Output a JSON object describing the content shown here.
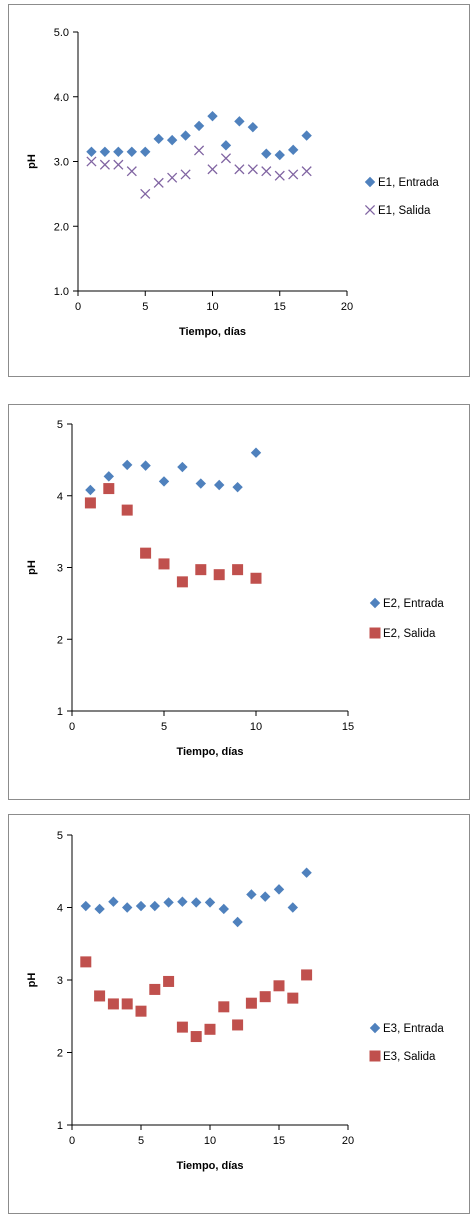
{
  "chart_data": [
    {
      "type": "scatter",
      "xlabel": "Tiempo, días",
      "ylabel": "pH",
      "xlim": [
        0,
        20
      ],
      "ylim": [
        1.0,
        5.0
      ],
      "xticks": [
        "0",
        "5",
        "10",
        "15",
        "20"
      ],
      "yticks": [
        "1.0",
        "2.0",
        "3.0",
        "4.0",
        "5.0"
      ],
      "legend_position": "right",
      "series": [
        {
          "name": "E1, Entrada",
          "marker": "diamond",
          "color": "#4f81bd",
          "x": [
            1,
            2,
            3,
            4,
            5,
            6,
            7,
            8,
            9,
            10,
            11,
            12,
            13,
            14,
            15,
            16,
            17
          ],
          "y": [
            3.15,
            3.15,
            3.15,
            3.15,
            3.15,
            3.35,
            3.33,
            3.4,
            3.55,
            3.7,
            3.25,
            3.62,
            3.53,
            3.12,
            3.1,
            3.18,
            3.4
          ]
        },
        {
          "name": "E1, Salida",
          "marker": "x",
          "color": "#8064a2",
          "x": [
            1,
            2,
            3,
            4,
            5,
            6,
            7,
            8,
            9,
            10,
            11,
            12,
            13,
            14,
            15,
            16,
            17
          ],
          "y": [
            3.0,
            2.95,
            2.95,
            2.85,
            2.5,
            2.67,
            2.75,
            2.8,
            3.17,
            2.88,
            3.05,
            2.88,
            2.88,
            2.85,
            2.78,
            2.8,
            2.85
          ]
        }
      ]
    },
    {
      "type": "scatter",
      "xlabel": "Tiempo, días",
      "ylabel": "pH",
      "xlim": [
        0,
        15
      ],
      "ylim": [
        1,
        5
      ],
      "xticks": [
        "0",
        "5",
        "10",
        "15"
      ],
      "yticks": [
        "1",
        "2",
        "3",
        "4",
        "5"
      ],
      "legend_position": "right",
      "series": [
        {
          "name": "E2, Entrada",
          "marker": "diamond",
          "color": "#4f81bd",
          "x": [
            1,
            2,
            3,
            4,
            5,
            6,
            7,
            8,
            9,
            10
          ],
          "y": [
            4.08,
            4.27,
            4.43,
            4.42,
            4.2,
            4.4,
            4.17,
            4.15,
            4.12,
            4.6
          ]
        },
        {
          "name": "E2, Salida",
          "marker": "square",
          "color": "#c0504d",
          "x": [
            1,
            2,
            3,
            4,
            5,
            6,
            7,
            8,
            9,
            10
          ],
          "y": [
            3.9,
            4.1,
            3.8,
            3.2,
            3.05,
            2.8,
            2.97,
            2.9,
            2.97,
            2.85
          ]
        }
      ]
    },
    {
      "type": "scatter",
      "xlabel": "Tiempo, días",
      "ylabel": "pH",
      "xlim": [
        0,
        20
      ],
      "ylim": [
        1,
        5
      ],
      "xticks": [
        "0",
        "5",
        "10",
        "15",
        "20"
      ],
      "yticks": [
        "1",
        "2",
        "3",
        "4",
        "5"
      ],
      "legend_position": "right",
      "series": [
        {
          "name": "E3, Entrada",
          "marker": "diamond",
          "color": "#4f81bd",
          "x": [
            1,
            2,
            3,
            4,
            5,
            6,
            7,
            8,
            9,
            10,
            11,
            12,
            13,
            14,
            15,
            16,
            17
          ],
          "y": [
            4.02,
            3.98,
            4.08,
            4.0,
            4.02,
            4.02,
            4.07,
            4.08,
            4.07,
            4.07,
            3.98,
            3.8,
            4.18,
            4.15,
            4.25,
            4.0,
            4.48
          ]
        },
        {
          "name": "E3, Salida",
          "marker": "square",
          "color": "#c0504d",
          "x": [
            1,
            2,
            3,
            4,
            5,
            6,
            7,
            8,
            9,
            10,
            11,
            12,
            13,
            14,
            15,
            16,
            17
          ],
          "y": [
            3.25,
            2.78,
            2.67,
            2.67,
            2.57,
            2.87,
            2.98,
            2.35,
            2.22,
            2.32,
            2.63,
            2.38,
            2.68,
            2.77,
            2.92,
            2.75,
            3.07
          ]
        }
      ]
    }
  ]
}
